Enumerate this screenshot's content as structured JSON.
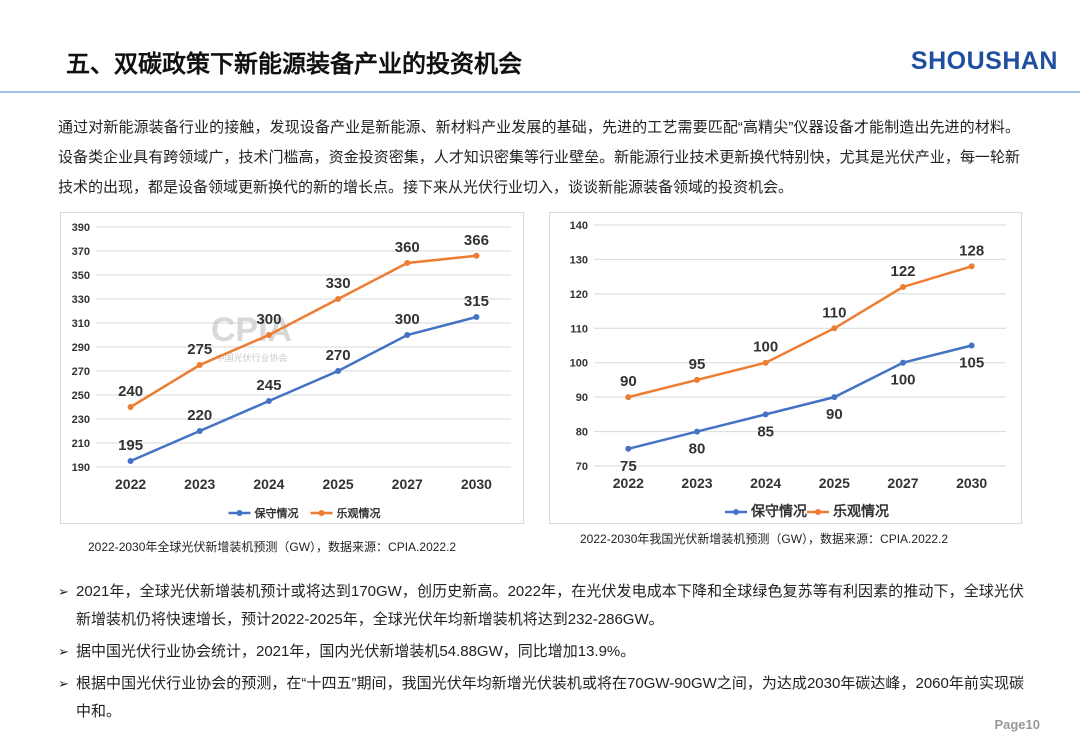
{
  "header": {
    "title": "五、双碳政策下新能源装备产业的投资机会",
    "logo": "SHOUSHAN"
  },
  "intro": "通过对新能源装备行业的接触，发现设备产业是新能源、新材料产业发展的基础，先进的工艺需要匹配“高精尖”仪器设备才能制造出先进的材料。设备类企业具有跨领域广，技术门槛高，资金投资密集，人才知识密集等行业壁垒。新能源行业技术更新换代特别快，尤其是光伏产业，每一轮新技术的出现，都是设备领域更新换代的新的增长点。接下来从光伏行业切入，谈谈新能源装备领域的投资机会。",
  "chart_data": [
    {
      "type": "line",
      "caption": "2022-2030年全球光伏新增装机预测（GW），数据来源：CPIA.2022.2",
      "watermark": {
        "title": "CPIA",
        "subtitle": "中国光伏行业协会"
      },
      "categories": [
        "2022",
        "2023",
        "2024",
        "2025",
        "2027",
        "2030"
      ],
      "series": [
        {
          "name": "保守情况",
          "color": "#4472c4",
          "values": [
            195,
            220,
            245,
            270,
            300,
            315
          ]
        },
        {
          "name": "乐观情况",
          "color": "#ed7d31",
          "values": [
            240,
            275,
            300,
            330,
            360,
            366
          ]
        }
      ],
      "ylim": [
        190,
        390
      ],
      "yticks": [
        190,
        210,
        230,
        250,
        270,
        290,
        310,
        330,
        350,
        370,
        390
      ],
      "grid": true,
      "legend": "bottom"
    },
    {
      "type": "line",
      "caption": "2022-2030年我国光伏新增装机预测（GW），数据来源：CPIA.2022.2",
      "categories": [
        "2022",
        "2023",
        "2024",
        "2025",
        "2027",
        "2030"
      ],
      "series": [
        {
          "name": "保守情况",
          "color": "#4472c4",
          "values": [
            75,
            80,
            85,
            90,
            100,
            105
          ]
        },
        {
          "name": "乐观情况",
          "color": "#ed7d31",
          "values": [
            90,
            95,
            100,
            110,
            122,
            128
          ]
        }
      ],
      "ylim": [
        70,
        140
      ],
      "yticks": [
        70,
        80,
        90,
        100,
        110,
        120,
        130,
        140
      ],
      "grid": true,
      "legend": "bottom"
    }
  ],
  "bullets": [
    "2021年，全球光伏新增装机预计或将达到170GW，创历史新高。2022年，在光伏发电成本下降和全球绿色复苏等有利因素的推动下，全球光伏新增装机仍将快速增长，预计2022-2025年，全球光伏年均新增装机将达到232-286GW。",
    "据中国光伏行业协会统计，2021年，国内光伏新增装机54.88GW，同比增加13.9%。",
    "根据中国光伏行业协会的预测，在“十四五”期间，我国光伏年均新增光伏装机或将在70GW-90GW之间，为达成2030年碳达峰，2060年前实现碳中和。"
  ],
  "footer": {
    "page": "Page10"
  }
}
